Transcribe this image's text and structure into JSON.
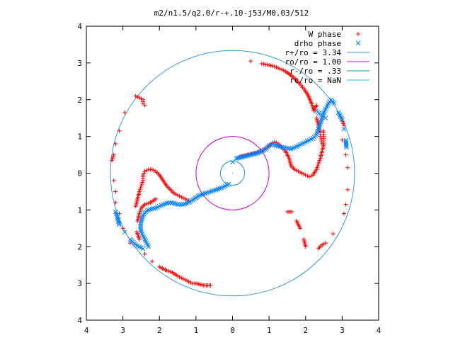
{
  "chart_data": {
    "type": "scatter",
    "title": "m2/n1.5/q2.0/r-+.10-j53/M0.03/512",
    "xlim": [
      -4,
      4
    ],
    "ylim": [
      -4,
      4
    ],
    "x_tick_values": [
      -4,
      -3,
      -2,
      -1,
      0,
      1,
      2,
      3,
      4
    ],
    "x_tick_labels": [
      "4",
      "3",
      "2",
      "1",
      "0",
      "1",
      "2",
      "3",
      "4"
    ],
    "y_tick_values": [
      4,
      3,
      2,
      1,
      0,
      -1,
      -2,
      -3,
      -4
    ],
    "y_tick_labels": [
      "4",
      "3",
      "2",
      "1",
      "0",
      "1",
      "2",
      "3",
      "4"
    ],
    "legend_position": "top-right",
    "grid": false,
    "series": [
      {
        "name": "W phase",
        "marker": "plus",
        "color": "#ff0000",
        "points": [
          [
            0.5,
            3.05
          ],
          [
            0.8,
            2.98
          ],
          [
            0.95,
            2.95
          ],
          [
            1.05,
            2.93
          ],
          [
            1.15,
            2.9
          ],
          [
            1.25,
            2.86
          ],
          [
            1.35,
            2.82
          ],
          [
            1.45,
            2.77
          ],
          [
            1.55,
            2.7
          ],
          [
            1.65,
            2.62
          ],
          [
            1.75,
            2.53
          ],
          [
            1.85,
            2.42
          ],
          [
            1.95,
            2.3
          ],
          [
            2.05,
            2.15
          ],
          [
            2.12,
            2.0
          ],
          [
            2.18,
            1.85
          ],
          [
            2.22,
            1.7
          ],
          [
            2.3,
            1.85
          ],
          [
            2.3,
            1.5
          ],
          [
            2.35,
            1.3
          ],
          [
            2.4,
            1.1
          ],
          [
            2.42,
            0.95
          ],
          [
            2.45,
            0.8
          ],
          [
            3.0,
            1.45
          ],
          [
            3.05,
            1.3
          ],
          [
            3.0,
            0.9
          ],
          [
            3.1,
            0.5
          ],
          [
            3.15,
            0.15
          ],
          [
            3.15,
            -0.45
          ],
          [
            3.1,
            -0.85
          ],
          [
            3.05,
            -1.1
          ],
          [
            2.75,
            -1.65
          ],
          [
            2.55,
            -1.9
          ],
          [
            2.45,
            -1.95
          ],
          [
            2.35,
            -2.05
          ],
          [
            2.0,
            -2.0
          ],
          [
            1.95,
            -1.8
          ],
          [
            1.85,
            -1.5
          ],
          [
            1.75,
            -1.3
          ],
          [
            1.62,
            -1.05
          ],
          [
            1.5,
            -1.05
          ],
          [
            -2.65,
            2.1
          ],
          [
            -2.55,
            2.05
          ],
          [
            -2.45,
            2.0
          ],
          [
            -2.45,
            1.9
          ],
          [
            -2.4,
            1.85
          ],
          [
            -2.95,
            1.65
          ],
          [
            -3.1,
            1.15
          ],
          [
            -3.2,
            0.8
          ],
          [
            -3.25,
            0.5
          ],
          [
            -3.3,
            0.35
          ],
          [
            -3.25,
            -0.2
          ],
          [
            -3.2,
            -0.5
          ],
          [
            -3.2,
            -0.8
          ],
          [
            -3.1,
            -1.1
          ],
          [
            -3.0,
            -1.5
          ],
          [
            -2.8,
            -1.9
          ],
          [
            -2.4,
            -2.2
          ],
          [
            -2.2,
            -2.4
          ],
          [
            -2.0,
            -2.55
          ],
          [
            -1.8,
            -2.65
          ],
          [
            -1.65,
            -2.7
          ],
          [
            -1.5,
            -2.8
          ],
          [
            -1.4,
            -2.85
          ],
          [
            -1.3,
            -2.9
          ],
          [
            -1.2,
            -2.95
          ],
          [
            -1.1,
            -3.0
          ],
          [
            -1.0,
            -3.0
          ],
          [
            -0.8,
            -3.05
          ],
          [
            -0.6,
            -3.05
          ],
          [
            -2.65,
            -0.9
          ],
          [
            -2.6,
            -0.7
          ],
          [
            -2.55,
            -0.5
          ],
          [
            -2.5,
            -0.35
          ],
          [
            -2.45,
            -0.2
          ],
          [
            -2.45,
            -0.05
          ],
          [
            -2.4,
            0.05
          ],
          [
            -2.3,
            0.1
          ],
          [
            -2.2,
            0.1
          ],
          [
            -2.1,
            0.05
          ],
          [
            -2.0,
            -0.05
          ],
          [
            -1.9,
            -0.2
          ],
          [
            -1.8,
            -0.35
          ],
          [
            -1.7,
            -0.45
          ],
          [
            -1.6,
            -0.55
          ],
          [
            -1.5,
            -0.6
          ],
          [
            -1.4,
            -0.65
          ],
          [
            -1.3,
            -0.7
          ],
          [
            -1.2,
            -0.75
          ],
          [
            -2.1,
            -0.7
          ],
          [
            -2.25,
            -0.8
          ],
          [
            -2.4,
            -0.85
          ],
          [
            -2.5,
            -0.95
          ],
          [
            -2.55,
            -1.1
          ],
          [
            -2.6,
            -1.3
          ],
          [
            -2.62,
            -1.6
          ],
          [
            -2.55,
            -1.8
          ],
          [
            0.2,
            0.45
          ],
          [
            0.4,
            0.5
          ],
          [
            0.6,
            0.55
          ],
          [
            0.8,
            0.6
          ],
          [
            0.95,
            0.7
          ],
          [
            1.05,
            0.8
          ],
          [
            1.15,
            0.85
          ],
          [
            1.25,
            0.8
          ],
          [
            1.35,
            0.7
          ],
          [
            1.45,
            0.6
          ],
          [
            1.55,
            0.4
          ],
          [
            1.6,
            0.2
          ],
          [
            1.7,
            0.1
          ],
          [
            1.8,
            0.05
          ],
          [
            1.9,
            0.0
          ],
          [
            2.0,
            -0.05
          ],
          [
            2.1,
            -0.1
          ],
          [
            2.2,
            -0.05
          ],
          [
            2.3,
            0.1
          ],
          [
            2.35,
            0.25
          ],
          [
            2.4,
            0.4
          ],
          [
            2.45,
            0.6
          ],
          [
            2.5,
            0.8
          ],
          [
            2.5,
            1.0
          ],
          [
            2.48,
            1.15
          ]
        ]
      },
      {
        "name": "drho phase",
        "marker": "cross",
        "color": "#0080ff",
        "points": [
          [
            0.1,
            0.4
          ],
          [
            0.3,
            0.45
          ],
          [
            0.5,
            0.5
          ],
          [
            0.7,
            0.55
          ],
          [
            0.9,
            0.65
          ],
          [
            1.0,
            0.75
          ],
          [
            1.1,
            0.78
          ],
          [
            1.2,
            0.75
          ],
          [
            1.3,
            0.72
          ],
          [
            1.4,
            0.7
          ],
          [
            1.5,
            0.68
          ],
          [
            1.6,
            0.66
          ],
          [
            1.7,
            0.7
          ],
          [
            1.8,
            0.75
          ],
          [
            1.9,
            0.8
          ],
          [
            2.0,
            0.85
          ],
          [
            2.1,
            0.9
          ],
          [
            2.2,
            0.95
          ],
          [
            2.3,
            1.05
          ],
          [
            2.35,
            1.2
          ],
          [
            2.4,
            1.35
          ],
          [
            2.45,
            1.5
          ],
          [
            2.5,
            1.65
          ],
          [
            2.55,
            1.75
          ],
          [
            2.6,
            1.85
          ],
          [
            2.65,
            1.95
          ],
          [
            2.7,
            2.0
          ],
          [
            2.78,
            1.9
          ],
          [
            2.9,
            1.65
          ],
          [
            3.0,
            1.45
          ],
          [
            3.05,
            1.2
          ],
          [
            3.1,
            0.9
          ],
          [
            3.12,
            0.7
          ],
          [
            2.4,
            1.6
          ],
          [
            2.3,
            1.7
          ],
          [
            2.55,
            1.5
          ],
          [
            0.0,
            0.3
          ],
          [
            -0.1,
            -0.3
          ],
          [
            -0.2,
            -0.35
          ],
          [
            -0.3,
            -0.4
          ],
          [
            -0.45,
            -0.45
          ],
          [
            -0.6,
            -0.5
          ],
          [
            -0.75,
            -0.55
          ],
          [
            -0.9,
            -0.6
          ],
          [
            -1.05,
            -0.7
          ],
          [
            -1.2,
            -0.8
          ],
          [
            -1.35,
            -0.85
          ],
          [
            -1.5,
            -0.85
          ],
          [
            -1.6,
            -0.82
          ],
          [
            -1.7,
            -0.8
          ],
          [
            -1.8,
            -0.82
          ],
          [
            -1.9,
            -0.85
          ],
          [
            -2.0,
            -0.9
          ],
          [
            -2.1,
            -0.95
          ],
          [
            -2.2,
            -0.97
          ],
          [
            -2.3,
            -1.0
          ],
          [
            -2.38,
            -1.05
          ],
          [
            -2.45,
            -1.15
          ],
          [
            -2.5,
            -1.3
          ],
          [
            -2.52,
            -1.45
          ],
          [
            -2.5,
            -1.6
          ],
          [
            -2.45,
            -1.7
          ],
          [
            -2.4,
            -1.8
          ],
          [
            -2.35,
            -1.9
          ],
          [
            -2.3,
            -2.0
          ],
          [
            -3.2,
            -1.05
          ],
          [
            -3.15,
            -1.2
          ],
          [
            -3.1,
            -1.4
          ],
          [
            -2.95,
            -1.6
          ],
          [
            -2.8,
            -1.8
          ],
          [
            -2.65,
            -1.95
          ],
          [
            -2.55,
            -2.0
          ],
          [
            -2.45,
            -2.05
          ]
        ]
      }
    ],
    "circles": [
      {
        "name": "r+/ro = 3.34",
        "radius": 3.34,
        "color": "#3399dd"
      },
      {
        "name": "ro/ro = 1.00",
        "radius": 1.0,
        "color": "#cc00cc"
      },
      {
        "name": "r-/ro = .33",
        "radius": 0.33,
        "color": "#1a8fd0"
      },
      {
        "name": "rc/ro = NaN",
        "radius": null,
        "color": "#00cccc"
      }
    ]
  }
}
